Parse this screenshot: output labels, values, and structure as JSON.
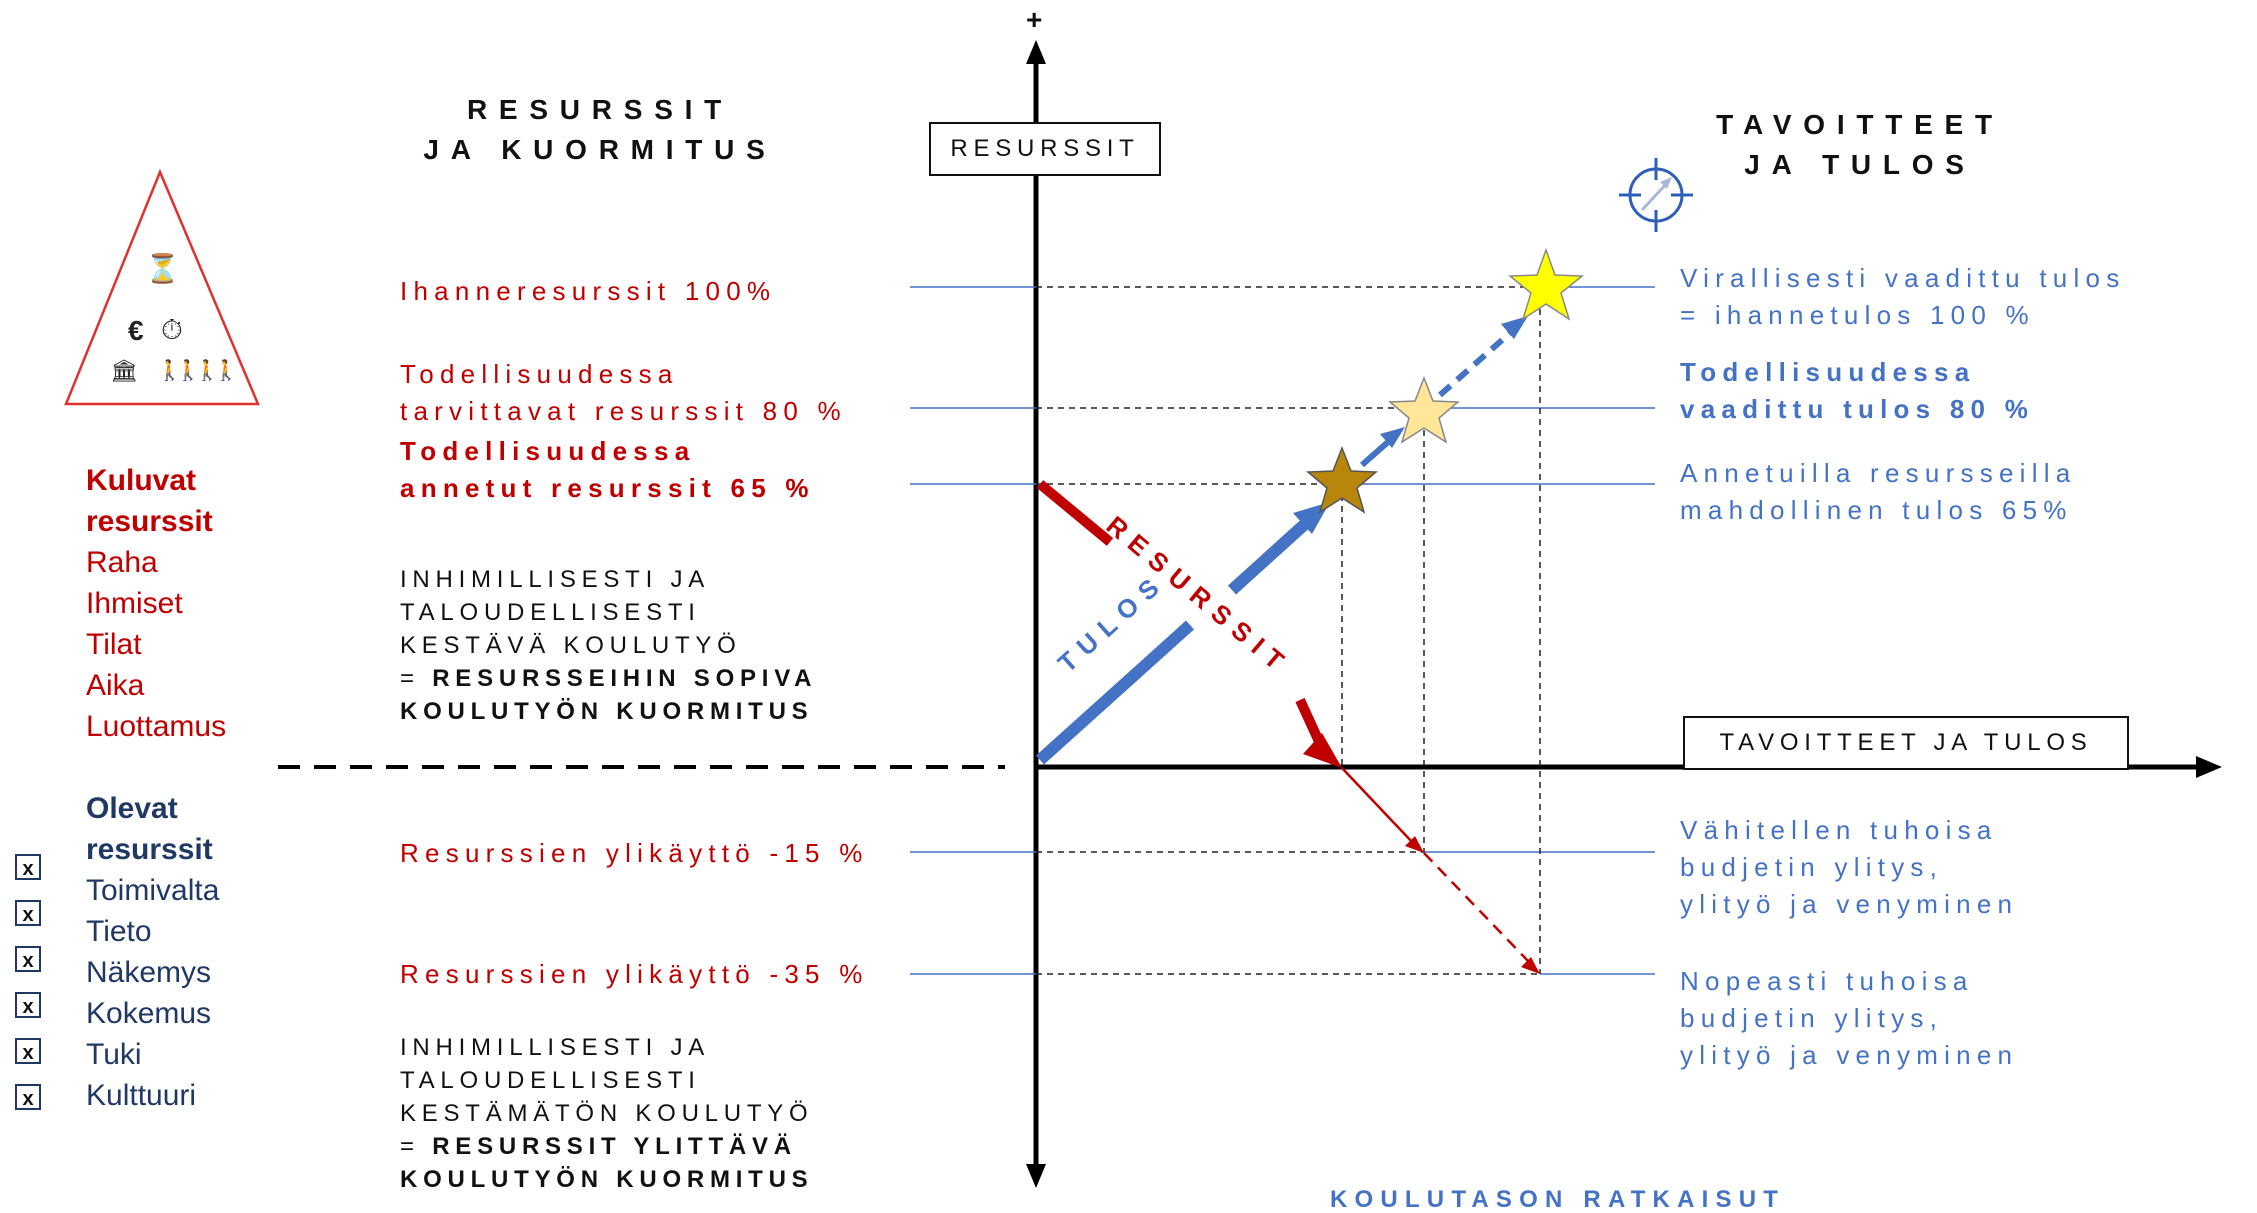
{
  "left_heading": {
    "line1": "RESURSSIT",
    "line2": "JA KUORMITUS"
  },
  "right_heading": {
    "line1": "TAVOITTEET",
    "line2": "JA TULOS"
  },
  "axis": {
    "y_label": "RESURSSIT",
    "x_label": "TAVOITTEET JA TULOS",
    "plus": "+"
  },
  "left_levels": {
    "ideal": "Ihanneresurssit 100%",
    "needed_1": "Todellisuudessa",
    "needed_2": "tarvittavat resurssit 80 %",
    "given_1": "Todellisuudessa",
    "given_2": "annetut resurssit 65 %",
    "over15": "Resurssien ylikäyttö -15 %",
    "over35": "Resurssien ylikäyttö -35 %"
  },
  "sustainable": {
    "l1": "INHIMILLISESTI JA",
    "l2": "TALOUDELLISESTI",
    "l3": "KESTÄVÄ KOULUTYÖ",
    "l4_prefix": "= ",
    "l4": "RESURSSEIHIN SOPIVA",
    "l5": "KOULUTYÖN KUORMITUS"
  },
  "unsustainable": {
    "l1": "INHIMILLISESTI JA",
    "l2": "TALOUDELLISESTI",
    "l3": "KESTÄMÄTÖN KOULUTYÖ",
    "l4_prefix": "= ",
    "l4": "RESURSSIT YLITTÄVÄ",
    "l5": "KOULUTYÖN KUORMITUS"
  },
  "right_levels": {
    "official_1": "Virallisesti vaadittu tulos",
    "official_2": "= ihannetulos 100 %",
    "required_1": "Todellisuudessa",
    "required_2": "vaadittu tulos 80 %",
    "possible_1": "Annetuilla resursseilla",
    "possible_2": "mahdollinen tulos 65%",
    "gradual_1": "Vähitellen tuhoisa",
    "gradual_2": "budjetin ylitys,",
    "gradual_3": "ylityö ja venyminen",
    "fast_1": "Nopeasti tuhoisa",
    "fast_2": "budjetin ylitys,",
    "fast_3": "ylityö ja venyminen"
  },
  "consumable": {
    "title1": "Kuluvat",
    "title2": "resurssit",
    "items": [
      "Raha",
      "Ihmiset",
      "Tilat",
      "Aika",
      "Luottamus"
    ]
  },
  "existing": {
    "title1": "Olevat",
    "title2": "resurssit",
    "items": [
      "Toimivalta",
      "Tieto",
      "Näkemys",
      "Kokemus",
      "Tuki",
      "Kulttuuri"
    ],
    "checkbox_mark": "x"
  },
  "arrows": {
    "tulos": "TULOS",
    "resurssit": "RESURSSIT"
  },
  "bottom_caption": "KOULUTASON RATKAISUT",
  "triangle_icons": {
    "euro": "€",
    "hourglass": "⏳",
    "stopwatch": "⏱",
    "building": "🏛",
    "people": "🚶"
  },
  "colors": {
    "red": "#c00000",
    "blue": "#4472c4",
    "navy": "#1f3864",
    "dark_gold": "#b8860b",
    "light_gold": "#ffe699",
    "yellow": "#ffff00"
  }
}
